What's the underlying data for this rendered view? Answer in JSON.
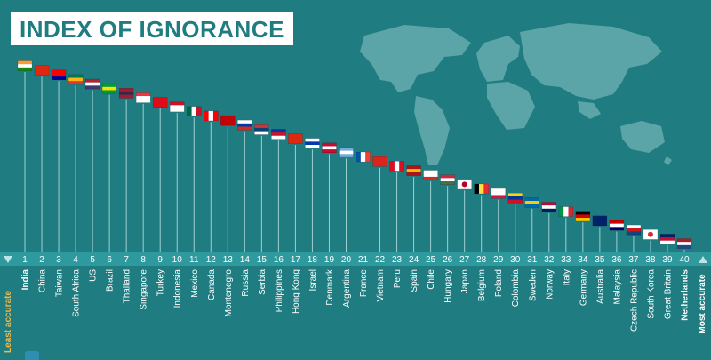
{
  "title": "INDEX OF IGNORANCE",
  "colors": {
    "background": "#1f7c80",
    "band": "#2f9a9e",
    "map": "#62a9ac",
    "stem": "#9fd0d2",
    "text": "#ffffff",
    "accent_least": "#f1b84a",
    "accent_most": "#ffffff"
  },
  "chart_data": {
    "type": "lollipop",
    "title": "INDEX OF IGNORANCE",
    "scale_left_label": "Least accurate",
    "scale_right_label": "Most accurate",
    "ranks": [
      1,
      2,
      3,
      4,
      5,
      6,
      7,
      8,
      9,
      10,
      11,
      12,
      13,
      14,
      15,
      16,
      17,
      18,
      19,
      20,
      21,
      22,
      23,
      24,
      25,
      26,
      27,
      28,
      29,
      30,
      31,
      32,
      33,
      34,
      35,
      36,
      37,
      38,
      39,
      40
    ],
    "countries": [
      "India",
      "China",
      "Taiwan",
      "South Africa",
      "US",
      "Brazil",
      "Thailand",
      "Singapore",
      "Turkey",
      "Indonesia",
      "Mexico",
      "Canada",
      "Montenegro",
      "Russia",
      "Serbia",
      "Philippines",
      "Hong Kong",
      "Israel",
      "Denmark",
      "Argentina",
      "France",
      "Vietnam",
      "Peru",
      "Spain",
      "Chile",
      "Hungary",
      "Japan",
      "Belgium",
      "Poland",
      "Colombia",
      "Sweden",
      "Norway",
      "Italy",
      "Germany",
      "Australia",
      "Malaysia",
      "Czech Republic",
      "South Korea",
      "Great Britain",
      "Netherlands"
    ],
    "flag_icons": [
      "india-flag-icon",
      "china-flag-icon",
      "taiwan-flag-icon",
      "south-africa-flag-icon",
      "us-flag-icon",
      "brazil-flag-icon",
      "thailand-flag-icon",
      "singapore-flag-icon",
      "turkey-flag-icon",
      "indonesia-flag-icon",
      "mexico-flag-icon",
      "canada-flag-icon",
      "montenegro-flag-icon",
      "russia-flag-icon",
      "serbia-flag-icon",
      "philippines-flag-icon",
      "hong-kong-flag-icon",
      "israel-flag-icon",
      "denmark-flag-icon",
      "argentina-flag-icon",
      "france-flag-icon",
      "vietnam-flag-icon",
      "peru-flag-icon",
      "spain-flag-icon",
      "chile-flag-icon",
      "hungary-flag-icon",
      "japan-flag-icon",
      "belgium-flag-icon",
      "poland-flag-icon",
      "colombia-flag-icon",
      "sweden-flag-icon",
      "norway-flag-icon",
      "italy-flag-icon",
      "germany-flag-icon",
      "australia-flag-icon",
      "malaysia-flag-icon",
      "czech-republic-flag-icon",
      "south-korea-flag-icon",
      "great-britain-flag-icon",
      "netherlands-flag-icon"
    ],
    "emphasized": [
      "India",
      "Netherlands"
    ]
  }
}
